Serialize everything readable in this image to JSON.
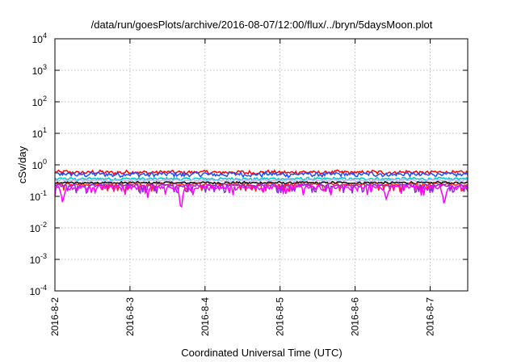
{
  "chart_data": {
    "type": "line",
    "title": "/data/run/goesPlots/archive/2016-08-07/12:00/flux/../bryn/5daysMoon.plot",
    "xlabel": "Coordinated Universal Time (UTC)",
    "ylabel": "cSv/day",
    "yscale": "log",
    "grid": true,
    "ylim": [
      0.0001,
      10000
    ],
    "y_ticks": [
      {
        "value": 0.0001,
        "mantissa": "10",
        "exp": "-4"
      },
      {
        "value": 0.001,
        "mantissa": "10",
        "exp": "-3"
      },
      {
        "value": 0.01,
        "mantissa": "10",
        "exp": "-2"
      },
      {
        "value": 0.1,
        "mantissa": "10",
        "exp": "-1"
      },
      {
        "value": 1,
        "mantissa": "10",
        "exp": "0"
      },
      {
        "value": 10,
        "mantissa": "10",
        "exp": "1"
      },
      {
        "value": 100,
        "mantissa": "10",
        "exp": "2"
      },
      {
        "value": 1000,
        "mantissa": "10",
        "exp": "3"
      },
      {
        "value": 10000,
        "mantissa": "10",
        "exp": "4"
      }
    ],
    "xlim": [
      "2016-08-02T00:00",
      "2016-08-07T12:00"
    ],
    "x_ticks": [
      {
        "value": "2016-08-02T00:00",
        "label": "2016-8-2"
      },
      {
        "value": "2016-08-03T00:00",
        "label": "2016-8-3"
      },
      {
        "value": "2016-08-04T00:00",
        "label": "2016-8-4"
      },
      {
        "value": "2016-08-05T00:00",
        "label": "2016-8-5"
      },
      {
        "value": "2016-08-06T00:00",
        "label": "2016-8-6"
      },
      {
        "value": "2016-08-07T00:00",
        "label": "2016-8-7"
      }
    ],
    "series": [
      {
        "color": "#ff0000",
        "base": 0.58,
        "amp": 0.12,
        "dips": []
      },
      {
        "color": "#1e4cff",
        "base": 0.5,
        "amp": 0.12,
        "dips": []
      },
      {
        "color": "#00c8c8",
        "base": 0.36,
        "amp": 0.05,
        "dips": []
      },
      {
        "color": "#b8b8ff",
        "base": 0.32,
        "amp": 0.04,
        "dips": []
      },
      {
        "color": "#000000",
        "base": 0.27,
        "amp": 0.03,
        "dips": []
      },
      {
        "color": "#ff2020",
        "base": 0.24,
        "amp": 0.03,
        "dips": []
      },
      {
        "color": "#8a2be2",
        "base": 0.22,
        "amp": 0.03,
        "dips": []
      },
      {
        "color": "#ff00ff",
        "base": 0.19,
        "amp": 0.05,
        "dips": [
          {
            "x": "2016-08-02T02:30",
            "y": 0.055
          },
          {
            "x": "2016-08-03T16:20",
            "y": 0.02
          },
          {
            "x": "2016-08-06T10:00",
            "y": 0.075
          },
          {
            "x": "2016-08-07T04:30",
            "y": 0.045
          }
        ]
      }
    ]
  }
}
